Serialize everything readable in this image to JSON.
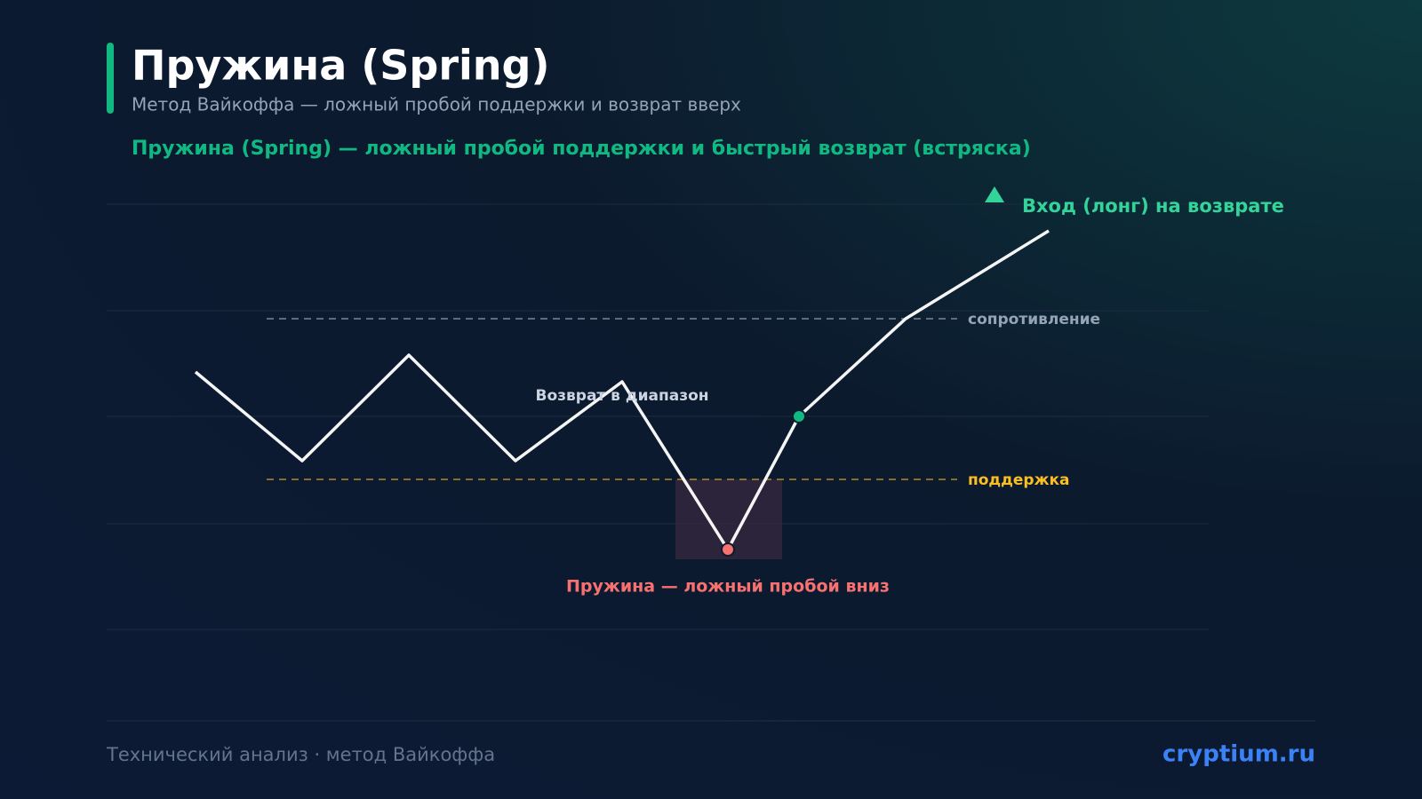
{
  "header": {
    "title": "Пружина (Spring)",
    "subtitle": "Метод Вайкоффа — ложный пробой поддержки и возврат вверх"
  },
  "diagram": {
    "heading": "Пружина (Spring) — ложный пробой поддержки и быстрый возврат (встряска)",
    "resistance_label": "сопротивление",
    "support_label": "поддержка",
    "return_label": "Возврат в диапазон",
    "spring_label": "Пружина — ложный пробой вниз",
    "entry_label": "Вход (лонг) на возврате"
  },
  "footer": {
    "left": "Технический анализ · метод Вайкоффа",
    "right": "cryptium.ru"
  }
}
